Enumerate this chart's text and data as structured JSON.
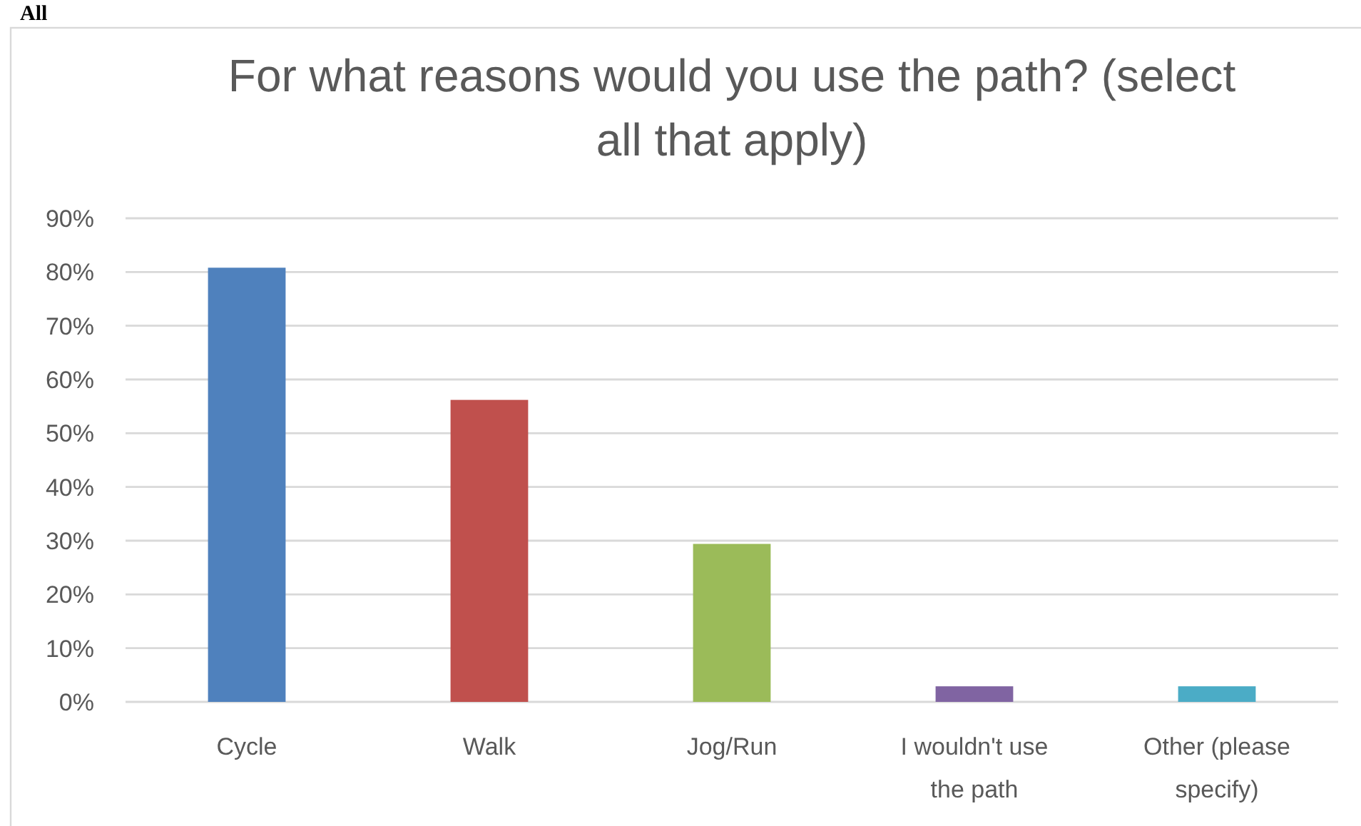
{
  "chart_data": {
    "type": "bar",
    "title": "For what reasons would you use the path? (select all that apply)",
    "categories": [
      "Cycle",
      "Walk",
      "Jog/Run",
      "I wouldn't use the path",
      "Other (please specify)"
    ],
    "values": [
      80.8,
      56.2,
      29.4,
      2.9,
      2.9
    ],
    "colors": [
      "#4f81bd",
      "#c0504d",
      "#9bbb59",
      "#8064a2",
      "#4bacc6"
    ],
    "ylim": [
      0,
      90
    ],
    "yticks": [
      {
        "value": 0,
        "label": "0%"
      },
      {
        "value": 10,
        "label": "10%"
      },
      {
        "value": 20,
        "label": "20%"
      },
      {
        "value": 30,
        "label": "30%"
      },
      {
        "value": 40,
        "label": "40%"
      },
      {
        "value": 50,
        "label": "50%"
      },
      {
        "value": 60,
        "label": "60%"
      },
      {
        "value": 70,
        "label": "70%"
      },
      {
        "value": 80,
        "label": "80%"
      },
      {
        "value": 90,
        "label": "90%"
      }
    ],
    "grid": "y",
    "annotations": [
      "All"
    ]
  }
}
